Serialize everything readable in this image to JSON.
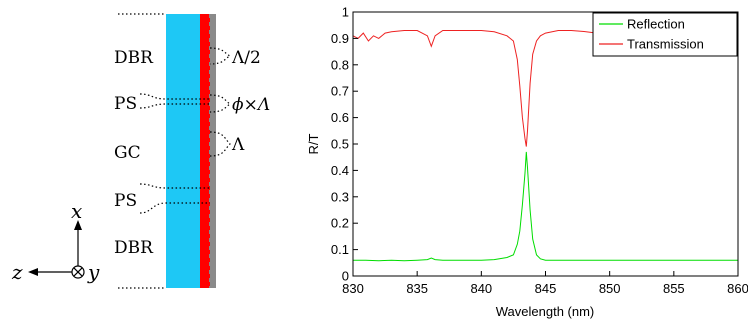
{
  "schematic": {
    "labels": {
      "dbr_top": "DBR",
      "ps_top": "PS",
      "gc": "GC",
      "ps_bottom": "PS",
      "dbr_bottom": "DBR"
    },
    "annotations": {
      "half_period": "Λ/2",
      "fill_factor": "ϕ×Λ",
      "period": "Λ"
    },
    "axes": {
      "x": "x",
      "y": "y",
      "z": "z"
    },
    "colors": {
      "waveguide": "#1ec8f5",
      "grating": "#ff0000",
      "substrate": "#8a8a8a"
    }
  },
  "chart_data": {
    "type": "line",
    "title": "",
    "xlabel": "Wavelength (nm)",
    "ylabel": "R/T",
    "xlim": [
      830,
      860
    ],
    "ylim": [
      0,
      1
    ],
    "xticks": [
      "830",
      "835",
      "840",
      "845",
      "850",
      "855",
      "860"
    ],
    "yticks": [
      "0",
      "0.1",
      "0.2",
      "0.3",
      "0.4",
      "0.5",
      "0.6",
      "0.7",
      "0.8",
      "0.9",
      "1"
    ],
    "grid": false,
    "legend_position": "top-right",
    "series": [
      {
        "name": "Reflection",
        "color": "#00dd00",
        "x": [
          830,
          831,
          832,
          833,
          834,
          835,
          835.8,
          836.1,
          836.4,
          837,
          838,
          839,
          840,
          841,
          842,
          842.5,
          842.8,
          843,
          843.2,
          843.4,
          843.5,
          843.6,
          843.8,
          844,
          844.3,
          844.6,
          845,
          846,
          847,
          848,
          850,
          852,
          855,
          858,
          860
        ],
        "values": [
          0.06,
          0.06,
          0.058,
          0.06,
          0.058,
          0.06,
          0.062,
          0.068,
          0.062,
          0.06,
          0.06,
          0.06,
          0.06,
          0.062,
          0.07,
          0.08,
          0.12,
          0.17,
          0.27,
          0.39,
          0.47,
          0.41,
          0.25,
          0.14,
          0.08,
          0.065,
          0.06,
          0.06,
          0.06,
          0.06,
          0.06,
          0.06,
          0.06,
          0.06,
          0.06
        ]
      },
      {
        "name": "Transmission",
        "color": "#ee2222",
        "x": [
          830,
          830.4,
          830.8,
          831.2,
          831.6,
          832,
          832.5,
          833,
          834,
          835,
          835.8,
          836.1,
          836.4,
          837,
          838,
          839,
          840,
          841,
          842,
          842.5,
          842.8,
          843,
          843.2,
          843.4,
          843.5,
          843.6,
          843.8,
          844,
          844.3,
          844.6,
          845,
          846,
          847,
          848,
          849,
          850,
          852,
          855,
          858,
          860
        ],
        "values": [
          0.91,
          0.9,
          0.92,
          0.89,
          0.91,
          0.9,
          0.92,
          0.925,
          0.93,
          0.93,
          0.91,
          0.87,
          0.91,
          0.93,
          0.93,
          0.93,
          0.93,
          0.925,
          0.91,
          0.89,
          0.82,
          0.72,
          0.6,
          0.52,
          0.49,
          0.55,
          0.73,
          0.84,
          0.89,
          0.91,
          0.92,
          0.93,
          0.93,
          0.926,
          0.92,
          0.925,
          0.928,
          0.928,
          0.928,
          0.928
        ]
      }
    ]
  }
}
